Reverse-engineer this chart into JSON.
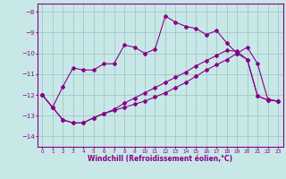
{
  "xlabel": "Windchill (Refroidissement éolien,°C)",
  "xlim": [
    -0.5,
    23.5
  ],
  "ylim": [
    -14.5,
    -7.6
  ],
  "yticks": [
    -14,
    -13,
    -12,
    -11,
    -10,
    -9,
    -8
  ],
  "xticks": [
    0,
    1,
    2,
    3,
    4,
    5,
    6,
    7,
    8,
    9,
    10,
    11,
    12,
    13,
    14,
    15,
    16,
    17,
    18,
    19,
    20,
    21,
    22,
    23
  ],
  "bg_color": "#c8e8e8",
  "line_color": "#880088",
  "grid_color": "#9dbfbf",
  "line1_x": [
    0,
    1,
    2,
    3,
    4,
    5,
    6,
    7,
    8,
    9,
    10,
    11,
    12,
    13,
    14,
    15,
    16,
    17,
    18,
    19,
    20,
    21,
    22,
    23
  ],
  "line1_y": [
    -12.0,
    -12.6,
    -11.6,
    -10.7,
    -10.8,
    -10.8,
    -10.5,
    -10.5,
    -9.6,
    -9.7,
    -10.0,
    -9.8,
    -8.2,
    -8.5,
    -8.7,
    -8.8,
    -9.1,
    -8.9,
    -9.5,
    -10.0,
    -9.7,
    -10.5,
    -12.2,
    -12.3
  ],
  "line2_x": [
    0,
    1,
    2,
    3,
    4,
    5,
    6,
    7,
    8,
    9,
    10,
    11,
    12,
    13,
    14,
    15,
    16,
    17,
    18,
    19,
    20,
    21,
    22,
    23
  ],
  "line2_y": [
    -12.0,
    -12.6,
    -13.2,
    -13.35,
    -13.35,
    -13.1,
    -12.9,
    -12.7,
    -12.4,
    -12.15,
    -11.9,
    -11.65,
    -11.4,
    -11.15,
    -10.9,
    -10.6,
    -10.35,
    -10.1,
    -9.85,
    -9.9,
    -10.3,
    -12.05,
    -12.25,
    -12.3
  ],
  "line3_x": [
    0,
    1,
    2,
    3,
    4,
    5,
    6,
    7,
    8,
    9,
    10,
    11,
    12,
    13,
    14,
    15,
    16,
    17,
    18,
    19,
    20,
    21,
    22,
    23
  ],
  "line3_y": [
    -12.0,
    -12.6,
    -13.2,
    -13.35,
    -13.35,
    -13.1,
    -12.9,
    -12.75,
    -12.6,
    -12.45,
    -12.3,
    -12.1,
    -11.9,
    -11.65,
    -11.4,
    -11.1,
    -10.8,
    -10.55,
    -10.3,
    -10.0,
    -10.3,
    -12.05,
    -12.25,
    -12.3
  ]
}
